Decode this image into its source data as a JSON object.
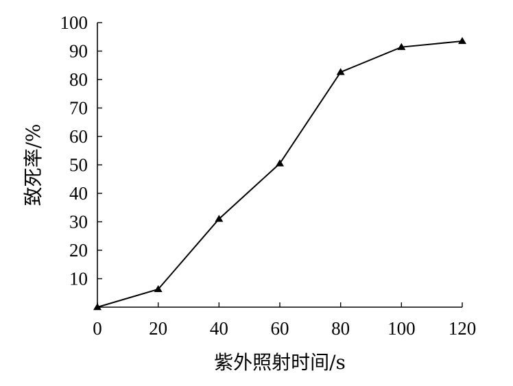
{
  "chart_data": {
    "type": "line",
    "title": "",
    "xlabel": "紫外照射时间/s",
    "ylabel": "致死率/%",
    "xlim": [
      0,
      120
    ],
    "ylim": [
      0,
      100
    ],
    "x_ticks": [
      0,
      20,
      40,
      60,
      80,
      100,
      120
    ],
    "y_ticks": [
      10,
      20,
      30,
      40,
      50,
      60,
      70,
      80,
      90,
      100
    ],
    "grid": false,
    "legend": "none",
    "marker": "triangle",
    "line_color": "#000000",
    "series": [
      {
        "x": [
          0,
          20,
          40,
          60,
          80,
          100,
          120
        ],
        "values": [
          0,
          6.3,
          31,
          50.5,
          82.6,
          91.4,
          93.5
        ]
      }
    ]
  }
}
